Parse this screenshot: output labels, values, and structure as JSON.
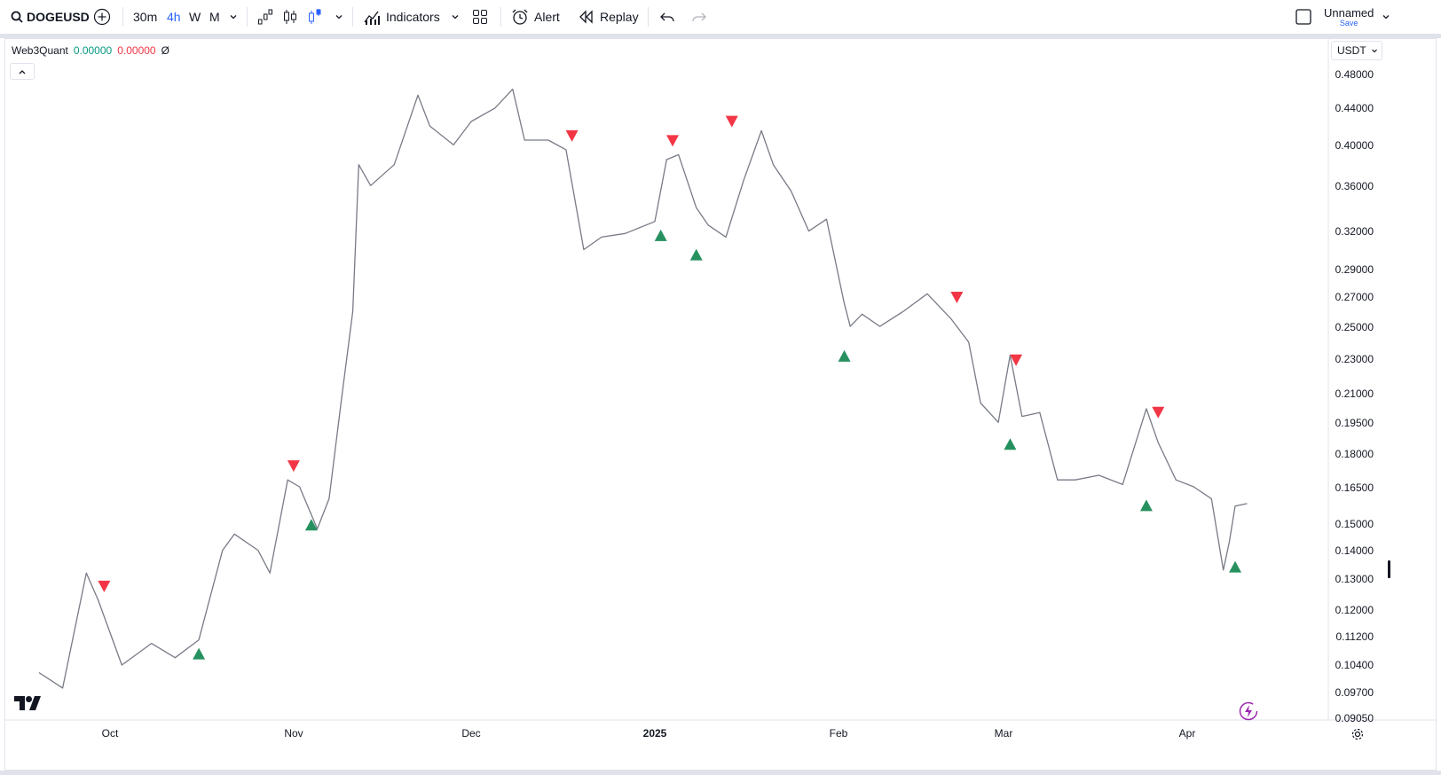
{
  "toolbar": {
    "symbol": "DOGEUSD",
    "intervals": [
      "30m",
      "4h",
      "W",
      "M"
    ],
    "active_interval": "4h",
    "indicators_label": "Indicators",
    "alert_label": "Alert",
    "replay_label": "Replay",
    "layout_name": "Unnamed",
    "save_label": "Save"
  },
  "legend": {
    "indicator_name": "Web3Quant",
    "value_1": "0.00000",
    "value_2": "0.00000",
    "symbol_glyph": "Ø"
  },
  "price_axis": {
    "currency": "USDT",
    "labels": [
      "0.48000",
      "0.44000",
      "0.40000",
      "0.36000",
      "0.32000",
      "0.29000",
      "0.27000",
      "0.25000",
      "0.23000",
      "0.21000",
      "0.19500",
      "0.18000",
      "0.16500",
      "0.15000",
      "0.14000",
      "0.13000",
      "0.12000",
      "0.11200",
      "0.10400",
      "0.09700",
      "0.09050"
    ]
  },
  "time_axis": {
    "labels": [
      "Oct",
      "Nov",
      "Dec",
      "2025",
      "Feb",
      "Mar",
      "Apr"
    ],
    "bold_label": "2025"
  },
  "colors": {
    "price_line": "#787b86",
    "buy_signal": "#26915f",
    "sell_signal": "#f23645",
    "accent": "#2962ff",
    "flash": "#9c27b0"
  },
  "chart_data": {
    "type": "line",
    "scale": "log",
    "symbol": "DOGEUSD",
    "ylim": [
      0.0905,
      0.48
    ],
    "x_tick_labels": [
      "Oct",
      "Nov",
      "Dec",
      "2025",
      "Feb",
      "Mar",
      "Apr"
    ],
    "series": [
      {
        "values_by_date": [
          [
            "2024-09-19",
            0.102
          ],
          [
            "2024-09-23",
            0.098
          ],
          [
            "2024-09-27",
            0.132
          ],
          [
            "2024-09-29",
            0.123
          ],
          [
            "2024-10-03",
            0.104
          ],
          [
            "2024-10-08",
            0.11
          ],
          [
            "2024-10-12",
            0.106
          ],
          [
            "2024-10-16",
            0.111
          ],
          [
            "2024-10-20",
            0.14
          ],
          [
            "2024-10-22",
            0.146
          ],
          [
            "2024-10-26",
            0.14
          ],
          [
            "2024-10-28",
            0.132
          ],
          [
            "2024-10-31",
            0.168
          ],
          [
            "2024-11-02",
            0.165
          ],
          [
            "2024-11-05",
            0.148
          ],
          [
            "2024-11-07",
            0.16
          ],
          [
            "2024-11-09",
            0.205
          ],
          [
            "2024-11-11",
            0.26
          ],
          [
            "2024-11-12",
            0.38
          ],
          [
            "2024-11-14",
            0.36
          ],
          [
            "2024-11-18",
            0.38
          ],
          [
            "2024-11-22",
            0.455
          ],
          [
            "2024-11-24",
            0.42
          ],
          [
            "2024-11-28",
            0.4
          ],
          [
            "2024-12-01",
            0.425
          ],
          [
            "2024-12-05",
            0.44
          ],
          [
            "2024-12-08",
            0.462
          ],
          [
            "2024-12-10",
            0.405
          ],
          [
            "2024-12-14",
            0.405
          ],
          [
            "2024-12-17",
            0.395
          ],
          [
            "2024-12-20",
            0.305
          ],
          [
            "2024-12-23",
            0.315
          ],
          [
            "2024-12-27",
            0.318
          ],
          [
            "2025-01-01",
            0.328
          ],
          [
            "2025-01-03",
            0.385
          ],
          [
            "2025-01-05",
            0.39
          ],
          [
            "2025-01-08",
            0.34
          ],
          [
            "2025-01-10",
            0.325
          ],
          [
            "2025-01-13",
            0.315
          ],
          [
            "2025-01-16",
            0.365
          ],
          [
            "2025-01-19",
            0.415
          ],
          [
            "2025-01-21",
            0.38
          ],
          [
            "2025-01-24",
            0.355
          ],
          [
            "2025-01-27",
            0.32
          ],
          [
            "2025-01-30",
            0.33
          ],
          [
            "2025-02-02",
            0.265
          ],
          [
            "2025-02-03",
            0.25
          ],
          [
            "2025-02-05",
            0.258
          ],
          [
            "2025-02-08",
            0.25
          ],
          [
            "2025-02-12",
            0.26
          ],
          [
            "2025-02-16",
            0.272
          ],
          [
            "2025-02-20",
            0.255
          ],
          [
            "2025-02-23",
            0.24
          ],
          [
            "2025-02-25",
            0.205
          ],
          [
            "2025-02-28",
            0.195
          ],
          [
            "2025-03-02",
            0.232
          ],
          [
            "2025-03-04",
            0.198
          ],
          [
            "2025-03-07",
            0.2
          ],
          [
            "2025-03-10",
            0.168
          ],
          [
            "2025-03-13",
            0.168
          ],
          [
            "2025-03-17",
            0.17
          ],
          [
            "2025-03-21",
            0.166
          ],
          [
            "2025-03-25",
            0.202
          ],
          [
            "2025-03-27",
            0.185
          ],
          [
            "2025-03-30",
            0.168
          ],
          [
            "2025-04-02",
            0.165
          ],
          [
            "2025-04-05",
            0.16
          ],
          [
            "2025-04-07",
            0.133
          ],
          [
            "2025-04-08",
            0.143
          ],
          [
            "2025-04-09",
            0.157
          ],
          [
            "2025-04-11",
            0.158
          ]
        ]
      }
    ],
    "signals": [
      {
        "date": "2024-09-30",
        "price": 0.123,
        "type": "sell"
      },
      {
        "date": "2024-10-16",
        "price": 0.111,
        "type": "buy"
      },
      {
        "date": "2024-11-01",
        "price": 0.168,
        "type": "sell"
      },
      {
        "date": "2024-11-04",
        "price": 0.155,
        "type": "buy"
      },
      {
        "date": "2024-12-18",
        "price": 0.395,
        "type": "sell"
      },
      {
        "date": "2025-01-02",
        "price": 0.328,
        "type": "buy"
      },
      {
        "date": "2025-01-04",
        "price": 0.39,
        "type": "sell"
      },
      {
        "date": "2025-01-08",
        "price": 0.312,
        "type": "buy"
      },
      {
        "date": "2025-01-14",
        "price": 0.41,
        "type": "sell"
      },
      {
        "date": "2025-02-02",
        "price": 0.24,
        "type": "buy"
      },
      {
        "date": "2025-02-21",
        "price": 0.26,
        "type": "sell"
      },
      {
        "date": "2025-03-02",
        "price": 0.191,
        "type": "buy"
      },
      {
        "date": "2025-03-03",
        "price": 0.221,
        "type": "sell"
      },
      {
        "date": "2025-03-25",
        "price": 0.163,
        "type": "buy"
      },
      {
        "date": "2025-03-27",
        "price": 0.193,
        "type": "sell"
      },
      {
        "date": "2025-04-09",
        "price": 0.139,
        "type": "buy"
      }
    ]
  }
}
